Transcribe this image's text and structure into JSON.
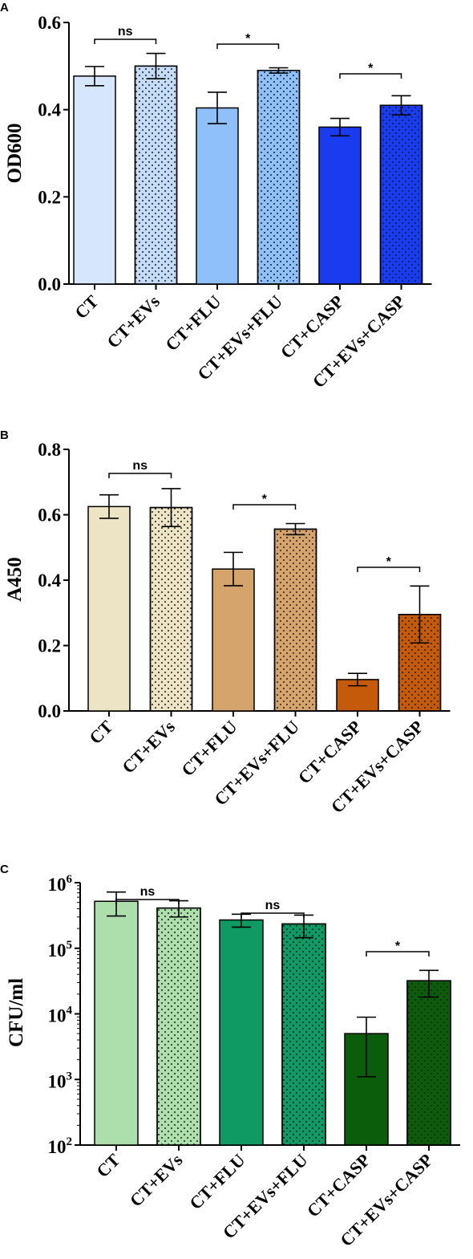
{
  "chart_data": [
    {
      "panel": "A",
      "type": "bar",
      "ylabel": "OD600",
      "scale": "linear",
      "ylim": [
        0,
        0.6
      ],
      "yticks": [
        0,
        0.2,
        0.4,
        0.6
      ],
      "ytick_labels": [
        "0.0",
        "0.2",
        "0.4",
        "0.6"
      ],
      "categories": [
        "CT",
        "CT+EVs",
        "CT+FLU",
        "CT+EVs+FLU",
        "CT+CASP",
        "CT+EVs+CASP"
      ],
      "values": [
        0.477,
        0.5,
        0.404,
        0.49,
        0.36,
        0.41
      ],
      "errors": [
        0.022,
        0.029,
        0.036,
        0.006,
        0.02,
        0.022
      ],
      "colors": [
        "#d6e6fb",
        "#c4dcf8",
        "#8fc0f9",
        "#8fc0f9",
        "#1a3cf0",
        "#1a3cf0"
      ],
      "dotted": [
        false,
        true,
        false,
        true,
        false,
        true
      ],
      "significance": [
        {
          "from": 0,
          "to": 1,
          "label": "ns"
        },
        {
          "from": 2,
          "to": 3,
          "label": "*"
        },
        {
          "from": 4,
          "to": 5,
          "label": "*"
        }
      ]
    },
    {
      "panel": "B",
      "type": "bar",
      "ylabel": "A450",
      "scale": "linear",
      "ylim": [
        0,
        0.8
      ],
      "yticks": [
        0,
        0.2,
        0.4,
        0.6,
        0.8
      ],
      "ytick_labels": [
        "0.0",
        "0.2",
        "0.4",
        "0.6",
        "0.8"
      ],
      "categories": [
        "CT",
        "CT+EVs",
        "CT+FLU",
        "CT+EVs+FLU",
        "CT+CASP",
        "CT+EVs+CASP"
      ],
      "values": [
        0.625,
        0.622,
        0.434,
        0.556,
        0.096,
        0.295
      ],
      "errors": [
        0.036,
        0.058,
        0.051,
        0.017,
        0.019,
        0.087
      ],
      "colors": [
        "#ede4c6",
        "#ede4c6",
        "#d4a46c",
        "#d4a46c",
        "#c55a0a",
        "#c55a0a"
      ],
      "dotted": [
        false,
        true,
        false,
        true,
        false,
        true
      ],
      "significance": [
        {
          "from": 0,
          "to": 1,
          "label": "ns"
        },
        {
          "from": 2,
          "to": 3,
          "label": "*"
        },
        {
          "from": 4,
          "to": 5,
          "label": "*"
        }
      ]
    },
    {
      "panel": "C",
      "type": "bar",
      "ylabel": "CFU/ml",
      "scale": "log",
      "ylim": [
        100,
        1000000
      ],
      "yticks": [
        100,
        1000,
        10000,
        100000,
        1000000
      ],
      "ytick_labels": [
        {
          "base": "10",
          "exp": "2"
        },
        {
          "base": "10",
          "exp": "3"
        },
        {
          "base": "10",
          "exp": "4"
        },
        {
          "base": "10",
          "exp": "5"
        },
        {
          "base": "10",
          "exp": "6"
        }
      ],
      "categories": [
        "CT",
        "CT+EVs",
        "CT+FLU",
        "CT+EVs+FLU",
        "CT+CASP",
        "CT+EVs+CASP"
      ],
      "values": [
        520000,
        410000,
        270000,
        235000,
        5000,
        32000
      ],
      "err_low": [
        310000,
        300000,
        210000,
        145000,
        1100,
        18000
      ],
      "err_high": [
        720000,
        530000,
        330000,
        320000,
        8900,
        46000
      ],
      "colors": [
        "#addfad",
        "#addfad",
        "#0e9a62",
        "#0e9a62",
        "#0b5c0b",
        "#0b5c0b"
      ],
      "dotted": [
        false,
        true,
        false,
        true,
        false,
        true
      ],
      "significance": [
        {
          "from": 0,
          "to": 1,
          "label": "ns"
        },
        {
          "from": 2,
          "to": 3,
          "label": "ns"
        },
        {
          "from": 4,
          "to": 5,
          "label": "*"
        }
      ]
    }
  ]
}
